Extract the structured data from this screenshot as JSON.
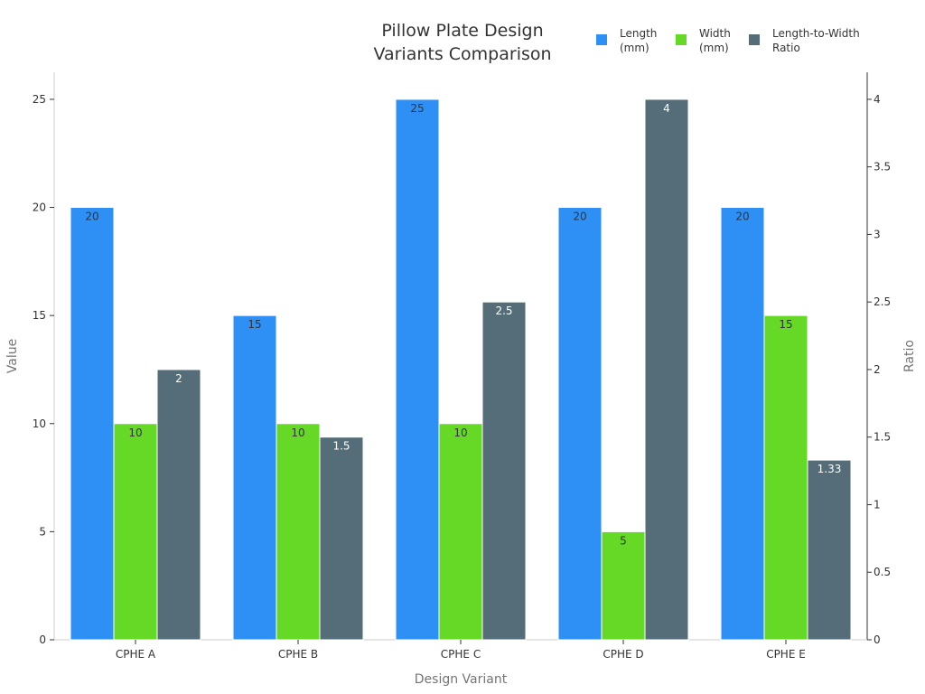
{
  "chart_data": {
    "type": "bar",
    "title_lines": [
      "Pillow Plate Design",
      "Variants Comparison"
    ],
    "xlabel": "Design Variant",
    "ylabel": "Value",
    "y2label": "Ratio",
    "categories": [
      "CPHE A",
      "CPHE B",
      "CPHE C",
      "CPHE D",
      "CPHE E"
    ],
    "ylim": [
      0,
      26.25
    ],
    "y2lim": [
      0,
      4.2
    ],
    "yticks": [
      0,
      5,
      10,
      15,
      20,
      25
    ],
    "y2ticks": [
      0,
      0.5,
      1,
      1.5,
      2,
      2.5,
      3,
      3.5,
      4
    ],
    "legend_position": "top-right",
    "grid": false,
    "series": [
      {
        "name_lines": [
          "Length",
          "(mm)"
        ],
        "axis": "left",
        "color": "#2e90f5",
        "label_color": "#333333",
        "values": [
          20,
          15,
          25,
          20,
          20
        ],
        "labels": [
          "20",
          "15",
          "25",
          "20",
          "20"
        ]
      },
      {
        "name_lines": [
          "Width",
          "(mm)"
        ],
        "axis": "left",
        "color": "#66d926",
        "label_color": "#333333",
        "values": [
          10,
          10,
          10,
          5,
          15
        ],
        "labels": [
          "10",
          "10",
          "10",
          "5",
          "15"
        ]
      },
      {
        "name_lines": [
          "Length-to-Width",
          "Ratio"
        ],
        "axis": "right",
        "color": "#546d78",
        "label_color": "#ffffff",
        "values": [
          2,
          1.5,
          2.5,
          4,
          1.33
        ],
        "labels": [
          "2",
          "1.5",
          "2.5",
          "4",
          "1.33"
        ]
      }
    ]
  }
}
